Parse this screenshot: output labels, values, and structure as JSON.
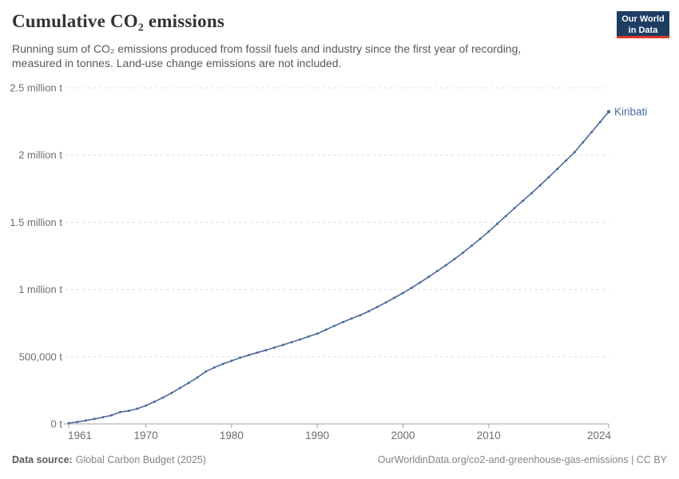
{
  "header": {
    "title": "Cumulative CO₂ emissions",
    "subtitle": "Running sum of CO₂ emissions produced from fossil fuels and industry since the first year of recording, measured in tonnes. Land-use change emissions are not included."
  },
  "logo": {
    "line1": "Our World",
    "line2": "in Data",
    "bg_color": "#1d3d63",
    "accent_color": "#e0362c"
  },
  "chart_data": {
    "type": "line",
    "title": "Cumulative CO₂ emissions",
    "unit": "t",
    "grid": true,
    "legend_position": "end-of-line-label",
    "x": {
      "start_year": 1961,
      "end_year": 2024,
      "ticks": [
        1961,
        1970,
        1980,
        1990,
        2000,
        2010,
        2024
      ]
    },
    "y": {
      "lim": [
        0,
        2500000
      ],
      "ticks": [
        {
          "value": 0,
          "label": "0 t"
        },
        {
          "value": 500000,
          "label": "500,000 t"
        },
        {
          "value": 1000000,
          "label": "1 million t"
        },
        {
          "value": 1500000,
          "label": "1.5 million t"
        },
        {
          "value": 2000000,
          "label": "2 million t"
        },
        {
          "value": 2500000,
          "label": "2.5 million t"
        }
      ]
    },
    "series": [
      {
        "name": "Kiribati",
        "color": "#4c6a9c",
        "values": [
          6000,
          14000,
          25000,
          37000,
          50000,
          64000,
          88000,
          97000,
          113000,
          136000,
          165000,
          196000,
          230000,
          268000,
          305000,
          345000,
          390000,
          420000,
          446000,
          469000,
          492000,
          512000,
          530000,
          548000,
          568000,
          588000,
          608000,
          628000,
          650000,
          671000,
          700000,
          729000,
          758000,
          784000,
          808000,
          838000,
          870000,
          903000,
          938000,
          974000,
          1012000,
          1052000,
          1094000,
          1137000,
          1180000,
          1226000,
          1274000,
          1324000,
          1376000,
          1431000,
          1488000,
          1546000,
          1605000,
          1660000,
          1716000,
          1775000,
          1835000,
          1896000,
          1958000,
          2020000,
          2095000,
          2170000,
          2246000,
          2322000
        ]
      }
    ]
  },
  "footer": {
    "source_label": "Data source:",
    "source": "Global Carbon Budget (2025)",
    "right": "OurWorldinData.org/co2-and-greenhouse-gas-emissions | CC BY"
  }
}
